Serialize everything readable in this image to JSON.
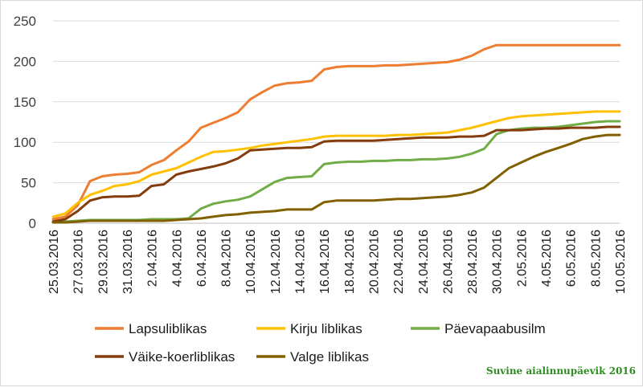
{
  "chart_data": {
    "type": "line",
    "title": "",
    "xlabel": "",
    "ylabel": "",
    "ylim": [
      0,
      250
    ],
    "yticks": [
      0,
      50,
      100,
      150,
      200,
      250
    ],
    "grid": true,
    "legend_position": "bottom",
    "x": [
      "25.03.2016",
      "26.03.2016",
      "27.03.2016",
      "28.03.2016",
      "29.03.2016",
      "30.03.2016",
      "31.03.2016",
      "01.04.2016",
      "02.04.2016",
      "03.04.2016",
      "04.04.2016",
      "05.04.2016",
      "06.04.2016",
      "07.04.2016",
      "08.04.2016",
      "09.04.2016",
      "10.04.2016",
      "11.04.2016",
      "12.04.2016",
      "13.04.2016",
      "14.04.2016",
      "15.04.2016",
      "16.04.2016",
      "17.04.2016",
      "18.04.2016",
      "19.04.2016",
      "20.04.2016",
      "21.04.2016",
      "22.04.2016",
      "23.04.2016",
      "24.04.2016",
      "25.04.2016",
      "26.04.2016",
      "27.04.2016",
      "28.04.2016",
      "29.04.2016",
      "30.04.2016",
      "01.05.2016",
      "02.05.2016",
      "03.05.2016",
      "04.05.2016",
      "05.05.2016",
      "06.05.2016",
      "07.05.2016",
      "08.05.2016",
      "09.05.2016",
      "10.05.2016"
    ],
    "xtick_labels": [
      "25.03.2016",
      "27.03.2016",
      "29.03.2016",
      "31.03.2016",
      "2.04.2016",
      "4.04.2016",
      "6.04.2016",
      "8.04.2016",
      "10.04.2016",
      "12.04.2016",
      "14.04.2016",
      "16.04.2016",
      "18.04.2016",
      "20.04.2016",
      "22.04.2016",
      "24.04.2016",
      "26.04.2016",
      "28.04.2016",
      "30.04.2016",
      "2.05.2016",
      "4.05.2016",
      "6.05.2016",
      "8.05.2016",
      "10.05.2016"
    ],
    "series": [
      {
        "name": "Lapsuliblikas",
        "color": "#ED7D31",
        "values": [
          5,
          8,
          22,
          52,
          58,
          60,
          61,
          63,
          72,
          78,
          90,
          101,
          118,
          124,
          130,
          137,
          153,
          162,
          170,
          173,
          174,
          176,
          190,
          193,
          194,
          194,
          194,
          195,
          195,
          196,
          197,
          198,
          199,
          202,
          207,
          215,
          220,
          220,
          220,
          220,
          220,
          220,
          220,
          220,
          220,
          220,
          220
        ]
      },
      {
        "name": "Kirju liblikas",
        "color": "#FFC000",
        "values": [
          8,
          12,
          25,
          35,
          40,
          46,
          48,
          52,
          60,
          64,
          68,
          75,
          82,
          88,
          89,
          91,
          93,
          96,
          98,
          100,
          102,
          104,
          107,
          108,
          108,
          108,
          108,
          108,
          109,
          109,
          110,
          111,
          112,
          115,
          118,
          122,
          126,
          130,
          132,
          133,
          134,
          135,
          136,
          137,
          138,
          138,
          138
        ]
      },
      {
        "name": "Päevapaabusilm",
        "color": "#70AD47",
        "values": [
          2,
          2,
          3,
          4,
          4,
          4,
          4,
          4,
          5,
          5,
          5,
          6,
          18,
          24,
          27,
          29,
          33,
          42,
          51,
          56,
          57,
          58,
          73,
          75,
          76,
          76,
          77,
          77,
          78,
          78,
          79,
          79,
          80,
          82,
          86,
          92,
          110,
          115,
          117,
          118,
          118,
          119,
          121,
          123,
          125,
          126,
          126
        ]
      },
      {
        "name": "Väike-koerliblikas",
        "color": "#843C0C",
        "values": [
          2,
          5,
          15,
          28,
          32,
          33,
          33,
          34,
          46,
          48,
          60,
          64,
          67,
          70,
          74,
          80,
          90,
          91,
          92,
          93,
          93,
          94,
          101,
          102,
          102,
          102,
          102,
          103,
          104,
          105,
          106,
          106,
          106,
          107,
          107,
          108,
          115,
          115,
          115,
          116,
          117,
          117,
          118,
          118,
          118,
          119,
          119
        ]
      },
      {
        "name": "Valge liblikas",
        "color": "#806000",
        "values": [
          1,
          1,
          2,
          3,
          3,
          3,
          3,
          3,
          3,
          3,
          4,
          5,
          6,
          8,
          10,
          11,
          13,
          14,
          15,
          17,
          17,
          17,
          26,
          28,
          28,
          28,
          28,
          29,
          30,
          30,
          31,
          32,
          33,
          35,
          38,
          44,
          56,
          68,
          75,
          82,
          88,
          93,
          98,
          104,
          107,
          109,
          109
        ]
      }
    ]
  },
  "watermark": "Suvine aialinnupäevik 2016"
}
